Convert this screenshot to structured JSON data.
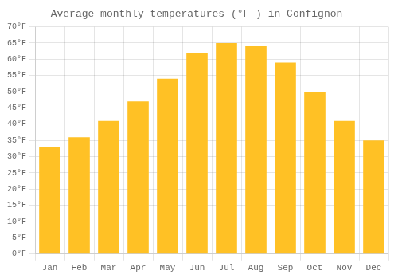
{
  "chart_data": {
    "type": "bar",
    "title": "Average monthly temperatures (°F ) in Confignon",
    "categories": [
      "Jan",
      "Feb",
      "Mar",
      "Apr",
      "May",
      "Jun",
      "Jul",
      "Aug",
      "Sep",
      "Oct",
      "Nov",
      "Dec"
    ],
    "values": [
      33,
      36,
      41,
      47,
      54,
      62,
      65,
      64,
      59,
      50,
      41,
      35
    ],
    "color": "#FFC125",
    "ylim": [
      0,
      70
    ],
    "yticks": [
      {
        "value": 0,
        "label": "0°F"
      },
      {
        "value": 5,
        "label": "5°F"
      },
      {
        "value": 10,
        "label": "10°F"
      },
      {
        "value": 15,
        "label": "15°F"
      },
      {
        "value": 20,
        "label": "20°F"
      },
      {
        "value": 25,
        "label": "25°F"
      },
      {
        "value": 30,
        "label": "30°F"
      },
      {
        "value": 35,
        "label": "35°F"
      },
      {
        "value": 40,
        "label": "40°F"
      },
      {
        "value": 45,
        "label": "45°F"
      },
      {
        "value": 50,
        "label": "50°F"
      },
      {
        "value": 55,
        "label": "55°F"
      },
      {
        "value": 60,
        "label": "60°F"
      },
      {
        "value": 65,
        "label": "65°F"
      },
      {
        "value": 70,
        "label": "70°F"
      }
    ],
    "grid": true
  }
}
